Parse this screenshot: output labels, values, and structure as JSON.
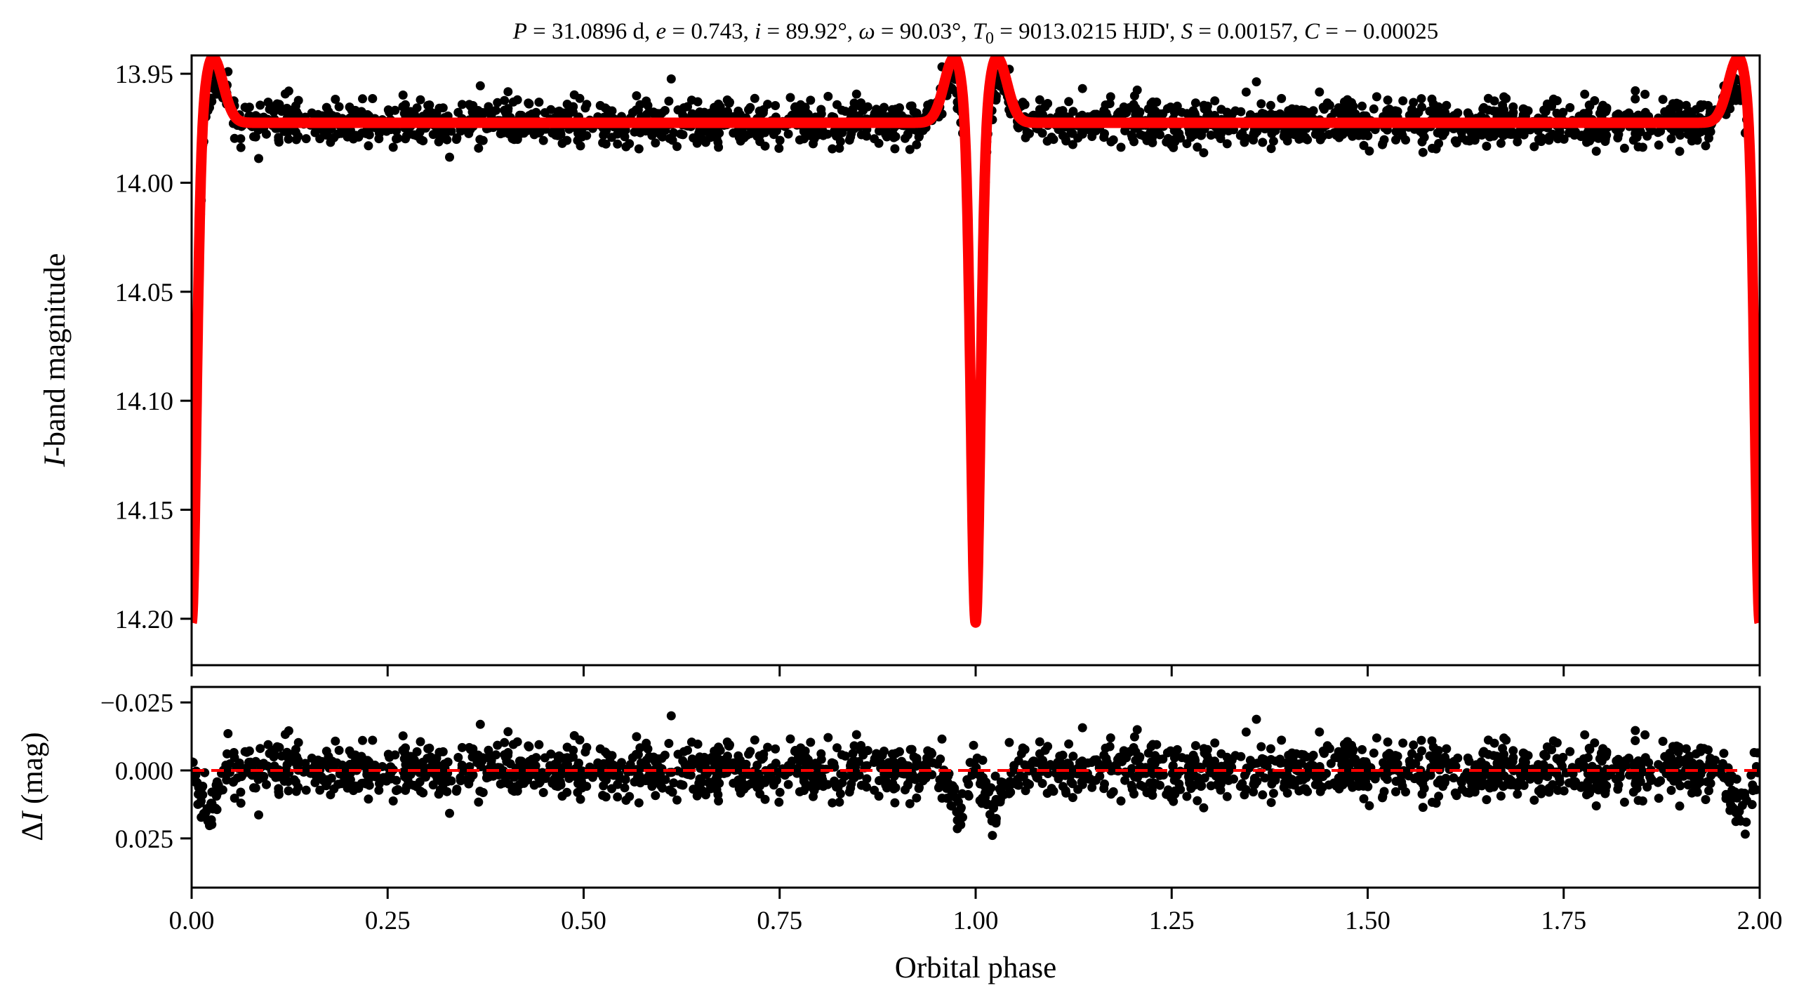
{
  "chart_data": [
    {
      "type": "scatter",
      "panel": "top",
      "title_segments": [
        {
          "text": "P",
          "italic": true
        },
        {
          "text": " = 31.0896 d, "
        },
        {
          "text": "e",
          "italic": true
        },
        {
          "text": " = 0.743, "
        },
        {
          "text": "i",
          "italic": true
        },
        {
          "text": " = 89.92°, "
        },
        {
          "text": "ω",
          "italic": true
        },
        {
          "text": " = 90.03°, "
        },
        {
          "text": "T",
          "italic": true
        },
        {
          "text": "0",
          "sub": true
        },
        {
          "text": " = 9013.0215 HJD', "
        },
        {
          "text": "S",
          "italic": true
        },
        {
          "text": " = 0.00157, "
        },
        {
          "text": "C",
          "italic": true
        },
        {
          "text": " = − 0.00025"
        }
      ],
      "ylabel_italic": "I",
      "ylabel_rest": "-band magnitude",
      "xlim": [
        0,
        2
      ],
      "ylim": [
        14.2213,
        13.9416
      ],
      "y_inverted": true,
      "yticks": [
        "13.95",
        "14.00",
        "14.05",
        "14.10",
        "14.15",
        "14.20"
      ],
      "ytick_values": [
        13.95,
        14.0,
        14.05,
        14.1,
        14.15,
        14.2
      ],
      "xtick_values": [
        0,
        0.25,
        0.5,
        0.75,
        1.0,
        1.25,
        1.5,
        1.75,
        2.0
      ],
      "series": [
        {
          "name": "observations",
          "kind": "points",
          "color": "#000000",
          "n_points_per_cycle": 1000,
          "noise_sigma_mag": 0.005
        },
        {
          "name": "model",
          "kind": "line",
          "color": "#ff0000",
          "baseline_mag": 13.9725,
          "eclipse_depth_mag": 0.23,
          "eclipse_sigma_phase": 0.006,
          "heartbeat_amp_mag": 0.03,
          "heartbeat_peak_offset_phase": 0.027
        }
      ]
    },
    {
      "type": "scatter",
      "panel": "bottom",
      "xlabel": "Orbital phase",
      "ylabel_prefix": "Δ",
      "ylabel_italic": "I",
      "ylabel_rest": " (mag)",
      "xlim": [
        0,
        2
      ],
      "ylim": [
        0.0431,
        -0.0307
      ],
      "y_inverted": true,
      "yticks": [
        "−0.025",
        "0.000",
        "0.025"
      ],
      "ytick_values": [
        -0.025,
        0.0,
        0.025
      ],
      "xticks": [
        "0.00",
        "0.25",
        "0.50",
        "0.75",
        "1.00",
        "1.25",
        "1.50",
        "1.75",
        "2.00"
      ],
      "xtick_values": [
        0,
        0.25,
        0.5,
        0.75,
        1.0,
        1.25,
        1.5,
        1.75,
        2.0
      ],
      "zero_line": {
        "value": 0,
        "color": "#ff0000",
        "style": "dashed"
      },
      "series": [
        {
          "name": "residuals",
          "color": "#000000"
        }
      ]
    }
  ]
}
